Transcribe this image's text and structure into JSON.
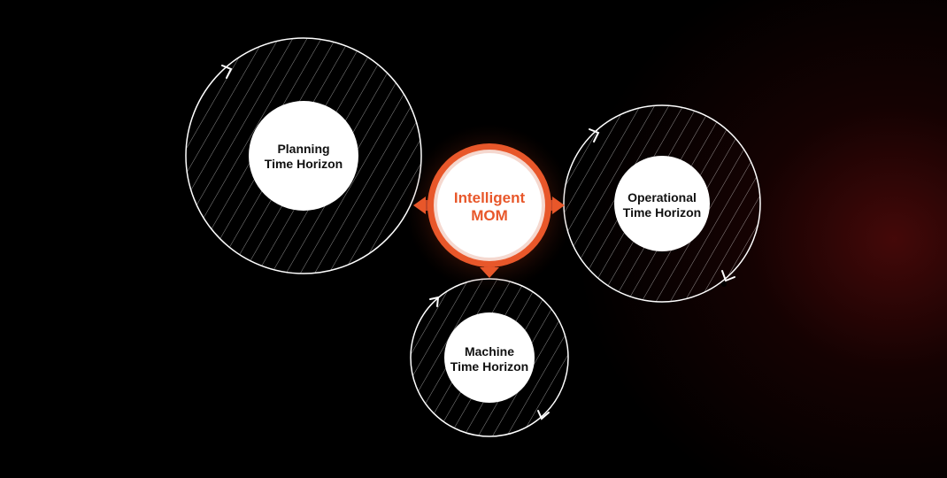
{
  "colors": {
    "accent": "#e8572a",
    "ring_stroke": "#ffffff",
    "node_fill": "#ffffff",
    "text_dark": "#111111"
  },
  "center": {
    "line1": "Intelligent",
    "line2": "MOM"
  },
  "nodes": {
    "planning": {
      "line1": "Planning",
      "line2": "Time Horizon"
    },
    "operational": {
      "line1": "Operational",
      "line2": "Time Horizon"
    },
    "machine": {
      "line1": "Machine",
      "line2": "Time Horizon"
    }
  }
}
